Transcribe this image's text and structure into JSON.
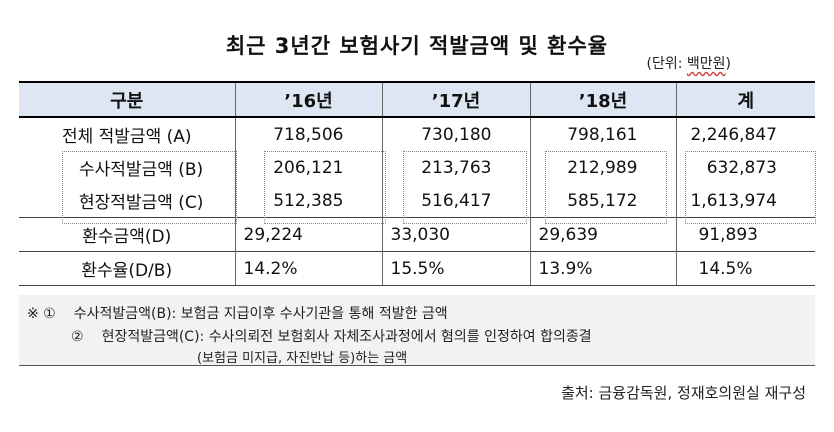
{
  "title": "최근 3년간 보험사기 적발금액 및 환수율",
  "unit": {
    "prefix": "(단위: ",
    "value": "백만원",
    "suffix": ")"
  },
  "headers": [
    "구분",
    "’16년",
    "’17년",
    "’18년",
    "계"
  ],
  "rows": {
    "total": {
      "label": "전체 적발금액 (A)",
      "values": [
        "718,506",
        "730,180",
        "798,161",
        "2,246,847"
      ]
    },
    "investigation": {
      "label": "수사적발금액 (B)",
      "values": [
        "206,121",
        "213,763",
        "212,989",
        "632,873"
      ]
    },
    "onsite": {
      "label": "현장적발금액 (C)",
      "values": [
        "512,385",
        "516,417",
        "585,172",
        "1,613,974"
      ]
    },
    "recovery": {
      "label": "환수금액(D)",
      "values": [
        "29,224",
        "33,030",
        "29,639",
        "91,893"
      ]
    },
    "rate": {
      "label": "환수율(D/B)",
      "values": [
        "14.2%",
        "15.5%",
        "13.9%",
        "14.5%"
      ]
    }
  },
  "notes": {
    "line1_mark": "※ ①",
    "line1": "수사적발금액(B): 보험금 지급이후 수사기관을 통해 적발한 금액",
    "line2_mark": "②",
    "line2": "현장적발금액(C): 수사의뢰전 보험회사 자체조사과정에서 혐의를 인정하여 합의종결",
    "line3": "(보험금 미지급, 자진반납 등)하는 금액"
  },
  "source": "출처: 금융감독원, 정재호의원실 재구성"
}
